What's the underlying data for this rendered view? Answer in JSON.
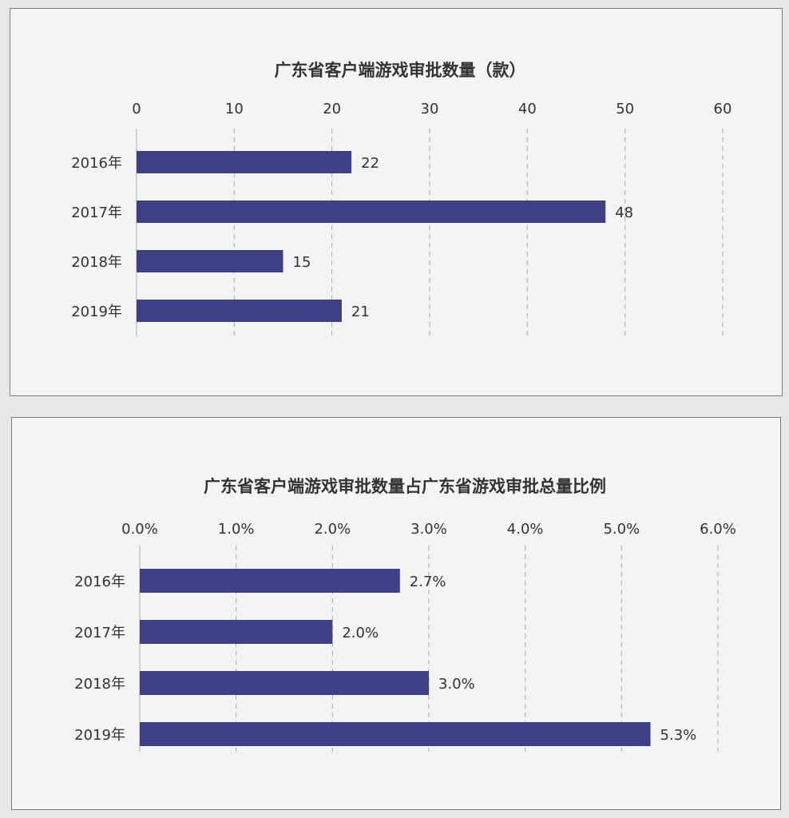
{
  "chart_data": [
    {
      "type": "bar",
      "orientation": "horizontal",
      "title": "广东省客户端游戏审批数量（款）",
      "categories": [
        "2016年",
        "2017年",
        "2018年",
        "2019年"
      ],
      "values": [
        22,
        48,
        15,
        21
      ],
      "value_labels": [
        "22",
        "48",
        "15",
        "21"
      ],
      "ticks": [
        "0",
        "10",
        "20",
        "30",
        "40",
        "50",
        "60"
      ],
      "xlim": [
        0,
        60
      ],
      "axis_position": "top",
      "grid": true,
      "legend": "none",
      "bar_color": "#3f3f85"
    },
    {
      "type": "bar",
      "orientation": "horizontal",
      "title": "广东省客户端游戏审批数量占广东省游戏审批总量比例",
      "categories": [
        "2016年",
        "2017年",
        "2018年",
        "2019年"
      ],
      "values": [
        2.7,
        2.0,
        3.0,
        5.3
      ],
      "value_labels": [
        "2.7%",
        "2.0%",
        "3.0%",
        "5.3%"
      ],
      "ticks": [
        "0.0%",
        "1.0%",
        "2.0%",
        "3.0%",
        "4.0%",
        "5.0%",
        "6.0%"
      ],
      "xlim": [
        0,
        6
      ],
      "axis_position": "top",
      "grid": true,
      "legend": "none",
      "bar_color": "#3f3f85"
    }
  ]
}
